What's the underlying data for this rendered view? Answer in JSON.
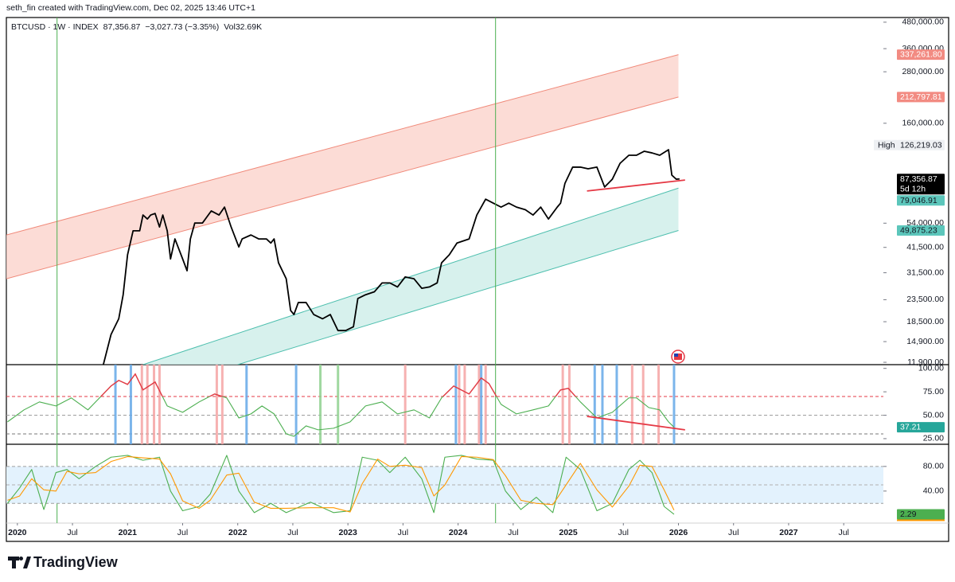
{
  "header": "seth_fin created with TradingView.com, Dec 02, 2025 13:46 UTC+1",
  "footer": "TradingView",
  "chart_data": [
    {
      "type": "line",
      "title": "BTCUSD · 1W · INDEX",
      "last": "87,356.87",
      "change": "−3,027.73 (−3.35%)",
      "volume": "Vol32.69K",
      "log_scale": true,
      "xlim": [
        2019.9,
        2027.86
      ],
      "ylim": [
        11600,
        505000
      ],
      "yticks": [
        {
          "value": 480000,
          "label": "480,000.00"
        },
        {
          "value": 360000,
          "label": "360,000.00"
        },
        {
          "value": 280000,
          "label": "280,000.00"
        },
        {
          "value": 160000,
          "label": "160,000.00"
        },
        {
          "value": 54000,
          "label": "54,000.00"
        },
        {
          "value": 41500,
          "label": "41,500.00"
        },
        {
          "value": 31500,
          "label": "31,500.00"
        },
        {
          "value": 23500,
          "label": "23,500.00"
        },
        {
          "value": 18500,
          "label": "18,500.00"
        },
        {
          "value": 14900,
          "label": "14,900.00"
        },
        {
          "value": 11900,
          "label": "11,900.00"
        }
      ],
      "series": [
        {
          "color": "#000000",
          "x": [
            2020.78,
            2020.85,
            2020.92,
            2020.96,
            2021.0,
            2021.05,
            2021.11,
            2021.14,
            2021.18,
            2021.21,
            2021.25,
            2021.29,
            2021.32,
            2021.36,
            2021.39,
            2021.43,
            2021.5,
            2021.54,
            2021.57,
            2021.61,
            2021.68,
            2021.76,
            2021.83,
            2021.88,
            2021.94,
            2022.01,
            2022.04,
            2022.12,
            2022.19,
            2022.26,
            2022.3,
            2022.33,
            2022.37,
            2022.44,
            2022.48,
            2022.51,
            2022.55,
            2022.62,
            2022.69,
            2022.77,
            2022.84,
            2022.91,
            2022.98,
            2023.05,
            2023.09,
            2023.16,
            2023.24,
            2023.31,
            2023.38,
            2023.45,
            2023.52,
            2023.6,
            2023.67,
            2023.74,
            2023.81,
            2023.85,
            2023.92,
            2023.99,
            2024.1,
            2024.17,
            2024.25,
            2024.32,
            2024.39,
            2024.46,
            2024.53,
            2024.61,
            2024.68,
            2024.75,
            2024.82,
            2024.9,
            2024.93,
            2024.97,
            2025.04,
            2025.11,
            2025.18,
            2025.26,
            2025.33,
            2025.4,
            2025.47,
            2025.55,
            2025.62,
            2025.69,
            2025.76,
            2025.83,
            2025.91,
            2025.94,
            2025.98,
            2026.01
          ],
          "values": [
            11590,
            16100,
            19100,
            24800,
            38300,
            49700,
            49700,
            59000,
            56500,
            59000,
            60000,
            51800,
            59000,
            49700,
            36600,
            45500,
            36600,
            32200,
            45500,
            54100,
            54100,
            61700,
            59000,
            64300,
            51800,
            41700,
            45500,
            47500,
            45500,
            45500,
            43500,
            45500,
            35100,
            29500,
            20900,
            20000,
            22800,
            22800,
            20000,
            19100,
            20000,
            16800,
            16800,
            17500,
            23800,
            24800,
            25600,
            28200,
            28200,
            27000,
            30100,
            29500,
            26600,
            27000,
            28200,
            35100,
            38300,
            43500,
            45500,
            59000,
            70100,
            67100,
            64300,
            67100,
            64300,
            62500,
            59000,
            64300,
            56500,
            64300,
            67100,
            83300,
            99300,
            99300,
            97500,
            99300,
            80000,
            87100,
            103500,
            113000,
            113000,
            118000,
            115900,
            113000,
            120000,
            91000,
            87100,
            87356.87
          ]
        }
      ],
      "trendlines": [
        {
          "color": "#e53945",
          "x": [
            2025.17,
            2026.06
          ],
          "values": [
            76600,
            86300
          ]
        }
      ],
      "bands": [
        {
          "color": "#fbd3cc",
          "stroke": "#f08a7a",
          "x": [
            2019.9,
            2026.0
          ],
          "upper": [
            47500,
            337261.8
          ],
          "lower": [
            29500,
            212797.81
          ]
        },
        {
          "color": "#cdeee9",
          "stroke": "#4dbfae",
          "x": [
            2021.14,
            2026.0
          ],
          "upper": [
            11600,
            79046.91
          ],
          "lower_x": [
            2022.0,
            2026.0
          ],
          "lower": [
            11600,
            49875.23
          ]
        }
      ],
      "vlines": [
        {
          "color": "#4caf50",
          "x": [
            2020.36,
            2024.34
          ]
        }
      ],
      "price_labels": [
        {
          "value": 337261.8,
          "label": "337,261.80",
          "color": "#f28b82",
          "text_color": "#ffffff"
        },
        {
          "value": 212797.81,
          "label": "212,797.81",
          "color": "#f28b82",
          "text_color": "#ffffff"
        },
        {
          "value": 126219.03,
          "label": "126,219.03",
          "prefix": "High",
          "color": "#eef0f3",
          "text_color": "#131722"
        },
        {
          "value": 87356.87,
          "label": "87,356.87",
          "countdown": "5d 12h",
          "color": "#000000",
          "text_color": "#ffffff"
        },
        {
          "value": 79046.91,
          "label": "79,046.91",
          "color": "#5cc6bb",
          "text_color": "#131722"
        },
        {
          "value": 49875.23,
          "label": "49,875.23",
          "color": "#5cc6bb",
          "text_color": "#131722"
        }
      ]
    },
    {
      "type": "line",
      "xlim": [
        2019.9,
        2027.86
      ],
      "ylim": [
        19,
        104
      ],
      "yticks": [
        {
          "value": 100,
          "label": "100.00"
        },
        {
          "value": 75,
          "label": "75.00"
        },
        {
          "value": 50,
          "label": "50.00"
        },
        {
          "value": 25,
          "label": "25.00"
        }
      ],
      "hlines": [
        {
          "value": 70,
          "color": "#e53945"
        },
        {
          "value": 50,
          "color": "#9e9e9e"
        },
        {
          "value": 30,
          "color": "#777777"
        }
      ],
      "overbought": 70,
      "overbought_color": "#e53945",
      "signals": [
        {
          "color": "#f4a3a3",
          "x": [
            2021.13,
            2021.18,
            2021.24,
            2021.29,
            2021.81,
            2021.86,
            2023.52,
            2024.01,
            2024.06,
            2024.19,
            2024.25,
            2024.95,
            2025.01,
            2025.58,
            2025.68,
            2025.82
          ]
        },
        {
          "color": "#64a8e8",
          "x": [
            2020.89,
            2021.03,
            2022.08,
            2022.53,
            2023.98,
            2024.21,
            2025.24,
            2025.31,
            2025.44,
            2025.96
          ]
        },
        {
          "color": "#8fd18f",
          "x": [
            2022.75,
            2022.91
          ]
        }
      ],
      "series": [
        {
          "color": "#4caf50",
          "x": [
            2019.91,
            2020.06,
            2020.2,
            2020.35,
            2020.49,
            2020.64,
            2020.78,
            2020.85,
            2020.92,
            2021.0,
            2021.07,
            2021.14,
            2021.25,
            2021.36,
            2021.5,
            2021.65,
            2021.79,
            2021.9,
            2022.01,
            2022.12,
            2022.22,
            2022.33,
            2022.44,
            2022.51,
            2022.62,
            2022.73,
            2022.87,
            2023.02,
            2023.16,
            2023.31,
            2023.45,
            2023.6,
            2023.74,
            2023.85,
            2023.96,
            2024.1,
            2024.21,
            2024.28,
            2024.39,
            2024.53,
            2024.68,
            2024.82,
            2024.93,
            2025.0,
            2025.11,
            2025.26,
            2025.4,
            2025.55,
            2025.62,
            2025.73,
            2025.83,
            2025.91,
            2025.96
          ],
          "values": [
            42.9,
            55.7,
            64.2,
            59.9,
            68.5,
            55.7,
            72.7,
            81.2,
            87.2,
            82.9,
            94.0,
            77.0,
            85.5,
            59.9,
            53.1,
            64.2,
            72.7,
            68.5,
            47.1,
            51.4,
            59.9,
            51.4,
            30.1,
            27.5,
            38.6,
            34.4,
            36.1,
            42.9,
            59.9,
            64.2,
            51.4,
            55.7,
            47.1,
            68.5,
            81.2,
            72.7,
            89.8,
            83.8,
            61.6,
            51.4,
            55.7,
            59.9,
            77.0,
            78.7,
            64.2,
            47.1,
            53.1,
            68.5,
            68.5,
            58.2,
            55.7,
            42.9,
            37.21
          ]
        }
      ],
      "trendlines": [
        {
          "color": "#e53945",
          "x": [
            2025.17,
            2026.06
          ],
          "values": [
            48.8,
            34.4
          ]
        }
      ],
      "price_labels": [
        {
          "value": 37.21,
          "label": "37.21",
          "color": "#26a69a",
          "text_color": "#ffffff"
        }
      ]
    },
    {
      "type": "line",
      "xlim": [
        2019.9,
        2027.86
      ],
      "ylim": [
        -12,
        116
      ],
      "yticks": [
        {
          "value": 80,
          "label": "80.00"
        },
        {
          "value": 40,
          "label": "40.00"
        }
      ],
      "band_range": [
        20,
        80
      ],
      "band_color": "#e3f2fd",
      "hlines": [
        {
          "value": 80,
          "color": "#9e9e9e"
        },
        {
          "value": 50,
          "color": "#b0b0b0"
        },
        {
          "value": 20,
          "color": "#9e9e9e"
        }
      ],
      "xticks": [
        2020,
        {
          "value": 2020.5,
          "label": "Jul"
        },
        2021,
        {
          "value": 2021.5,
          "label": "Jul"
        },
        2022,
        {
          "value": 2022.5,
          "label": "Jul"
        },
        2023,
        {
          "value": 2023.5,
          "label": "Jul"
        },
        2024,
        {
          "value": 2024.5,
          "label": "Jul"
        },
        2025,
        {
          "value": 2025.5,
          "label": "Jul"
        },
        2026,
        {
          "value": 2026.5,
          "label": "Jul"
        },
        2027,
        {
          "value": 2027.5,
          "label": "Jul"
        }
      ],
      "series": [
        {
          "color": "#4caf50",
          "x": [
            2019.91,
            2020.02,
            2020.13,
            2020.24,
            2020.35,
            2020.45,
            2020.56,
            2020.71,
            2020.85,
            2021.0,
            2021.14,
            2021.29,
            2021.39,
            2021.5,
            2021.65,
            2021.75,
            2021.9,
            2022.01,
            2022.15,
            2022.3,
            2022.44,
            2022.66,
            2022.87,
            2023.02,
            2023.13,
            2023.27,
            2023.38,
            2023.52,
            2023.67,
            2023.78,
            2023.88,
            2024.03,
            2024.17,
            2024.32,
            2024.43,
            2024.57,
            2024.71,
            2024.86,
            2024.98,
            2025.11,
            2025.26,
            2025.4,
            2025.55,
            2025.65,
            2025.76,
            2025.87,
            2025.96
          ],
          "values": [
            20,
            45,
            75,
            10,
            70,
            75,
            60,
            80,
            95,
            98,
            90,
            95,
            40,
            8,
            15,
            35,
            98,
            40,
            5,
            20,
            5,
            22,
            5,
            8,
            95,
            90,
            70,
            95,
            60,
            5,
            95,
            98,
            92,
            90,
            40,
            10,
            30,
            5,
            95,
            75,
            8,
            20,
            75,
            90,
            70,
            15,
            2.29
          ]
        },
        {
          "color": "#ff9800",
          "x": [
            2019.91,
            2020.02,
            2020.13,
            2020.24,
            2020.35,
            2020.45,
            2020.56,
            2020.71,
            2020.85,
            2021.0,
            2021.14,
            2021.29,
            2021.39,
            2021.5,
            2021.65,
            2021.75,
            2021.9,
            2022.01,
            2022.15,
            2022.3,
            2022.44,
            2022.66,
            2022.87,
            2023.02,
            2023.13,
            2023.27,
            2023.38,
            2023.52,
            2023.67,
            2023.78,
            2023.88,
            2024.03,
            2024.17,
            2024.32,
            2024.43,
            2024.57,
            2024.71,
            2024.86,
            2024.98,
            2025.11,
            2025.26,
            2025.4,
            2025.55,
            2025.65,
            2025.76,
            2025.87,
            2025.96
          ],
          "values": [
            25,
            32,
            60,
            42,
            40,
            72,
            68,
            70,
            88,
            96,
            94,
            92,
            68,
            24,
            12,
            25,
            66,
            69,
            22,
            12,
            12,
            13,
            13,
            6,
            52,
            92,
            80,
            82,
            78,
            32,
            50,
            96,
            95,
            91,
            65,
            25,
            20,
            18,
            50,
            85,
            42,
            14,
            48,
            82,
            80,
            42,
            9
          ]
        }
      ],
      "price_labels": [
        {
          "value": 2.29,
          "label": "2.29",
          "color": "#4caf50",
          "text_color": "#131722"
        }
      ]
    }
  ]
}
